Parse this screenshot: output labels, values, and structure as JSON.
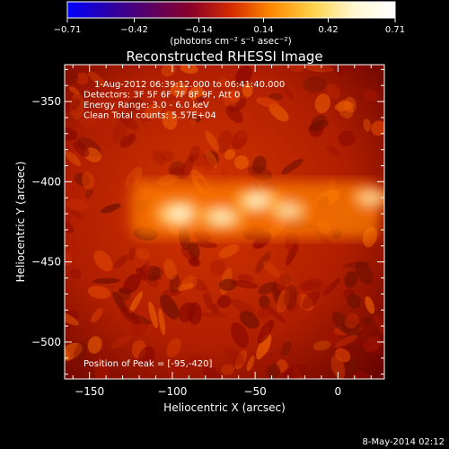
{
  "chart_data": {
    "type": "heatmap",
    "title": "Reconstructed RHESSI Image",
    "xlabel": "Heliocentric X (arcsec)",
    "ylabel": "Heliocentric Y (arcsec)",
    "xlim": [
      -165,
      28
    ],
    "ylim": [
      -523,
      -327
    ],
    "x_ticks": [
      -150,
      -100,
      -50,
      0
    ],
    "x_tick_labels": [
      "−150",
      "−100",
      "−50",
      "0"
    ],
    "y_ticks": [
      -350,
      -400,
      -450,
      -500
    ],
    "y_tick_labels": [
      "−350",
      "−400",
      "−450",
      "−500"
    ],
    "colorbar": {
      "range": [
        -0.71,
        0.71
      ],
      "ticks": [
        -0.71,
        -0.42,
        -0.14,
        0.14,
        0.42,
        0.71
      ],
      "tick_labels": [
        "−0.71",
        "−0.42",
        "−0.14",
        "0.14",
        "0.42",
        "0.71"
      ],
      "unit": "(photons cm⁻² s⁻¹ asec⁻²)",
      "colors": [
        "#0000ff",
        "#2a00a8",
        "#5a0064",
        "#8a002a",
        "#d42b00",
        "#ff8a00",
        "#ffd24a",
        "#fff8d0",
        "#ffffff"
      ]
    },
    "annotations": [
      "1-Aug-2012 06:39:12.000 to 06:41:40.000",
      "Detectors: 3F 5F 6F 7F 8F 9F, Att 0",
      "Energy Range: 3.0 - 6.0 keV",
      "Clean    Total counts: 5.57E+04"
    ],
    "peak_label": "Position of Peak = [-95,-420]",
    "sources": [
      {
        "x": -95,
        "y": -420,
        "intensity": 0.71
      },
      {
        "x": -70,
        "y": -422,
        "intensity": 0.55
      },
      {
        "x": -48,
        "y": -412,
        "intensity": 0.6
      },
      {
        "x": -30,
        "y": -418,
        "intensity": 0.45
      },
      {
        "x": 20,
        "y": -410,
        "intensity": 0.4
      }
    ],
    "timestamp": "8-May-2014 02:12"
  }
}
